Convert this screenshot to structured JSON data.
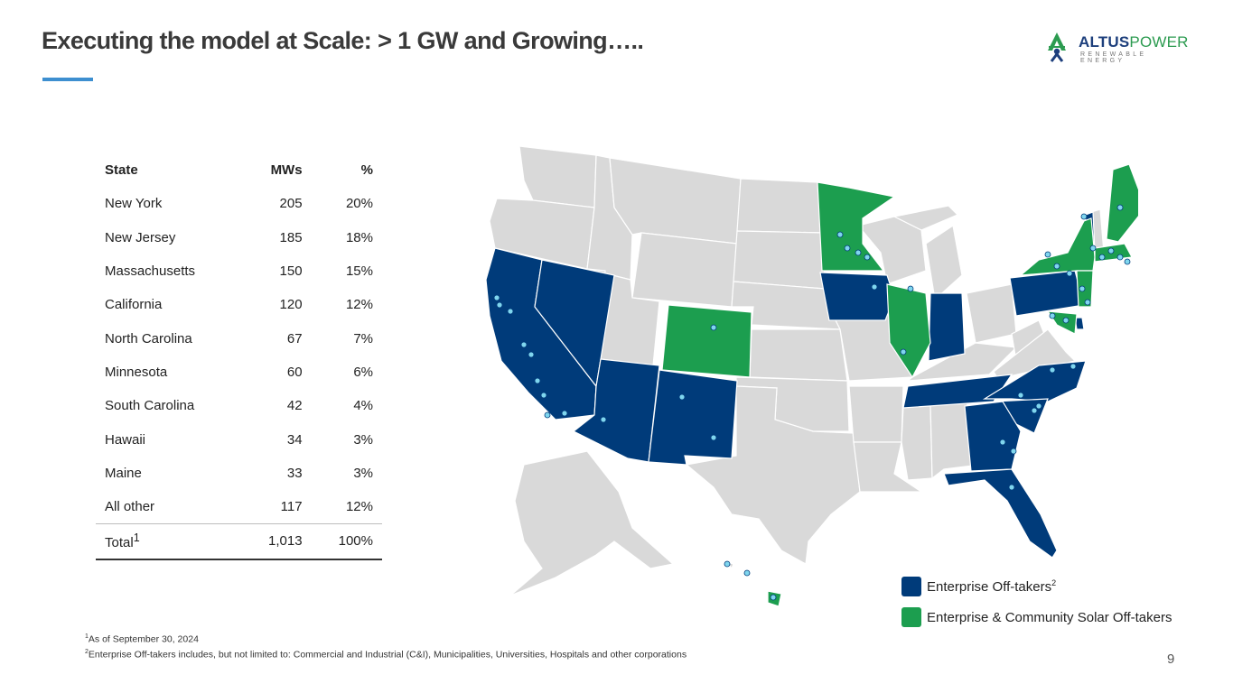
{
  "header": {
    "title": "Executing the model at Scale: > 1 GW and Growing…..",
    "logo_primary": "ALTUS",
    "logo_secondary": "POWER",
    "logo_tagline": "RENEWABLE ENERGY"
  },
  "table": {
    "headers": [
      "State",
      "MWs",
      "%"
    ],
    "rows": [
      {
        "state": "New York",
        "mw": "205",
        "pct": "20%"
      },
      {
        "state": "New Jersey",
        "mw": "185",
        "pct": "18%"
      },
      {
        "state": "Massachusetts",
        "mw": "150",
        "pct": "15%"
      },
      {
        "state": "California",
        "mw": "120",
        "pct": "12%"
      },
      {
        "state": "North Carolina",
        "mw": "67",
        "pct": "7%"
      },
      {
        "state": "Minnesota",
        "mw": "60",
        "pct": "6%"
      },
      {
        "state": "South Carolina",
        "mw": "42",
        "pct": "4%"
      },
      {
        "state": "Hawaii",
        "mw": "34",
        "pct": "3%"
      },
      {
        "state": "Maine",
        "mw": "33",
        "pct": "3%"
      },
      {
        "state": "All other",
        "mw": "117",
        "pct": "12%"
      }
    ],
    "total": {
      "label": "Total",
      "sup": "1",
      "mw": "1,013",
      "pct": "100%"
    }
  },
  "legend": {
    "enterprise_label": "Enterprise Off-takers",
    "enterprise_sup": "2",
    "enterprise_color": "#003b7a",
    "community_label": "Enterprise & Community Solar Off-takers",
    "community_color": "#1c9e4f"
  },
  "map": {
    "neutral_color": "#d9d9d9",
    "marker_color": "#7fd6ee",
    "enterprise_states": [
      "California",
      "Nevada",
      "Arizona",
      "New Mexico",
      "Iowa",
      "Indiana",
      "Pennsylvania",
      "Vermont",
      "Delaware",
      "Tennessee",
      "North Carolina",
      "South Carolina",
      "Georgia",
      "Florida"
    ],
    "community_states": [
      "Minnesota",
      "Colorado",
      "Illinois",
      "New York",
      "Maine",
      "Hawaii",
      "New Jersey",
      "Maryland",
      "Massachusetts"
    ]
  },
  "footnotes": {
    "note1_sup": "1",
    "note1": "As of September 30, 2024",
    "note2_sup": "2",
    "note2": "Enterprise Off-takers includes, but not limited to: Commercial and Industrial (C&I), Municipalities, Universities, Hospitals and other corporations"
  },
  "page_number": "9"
}
